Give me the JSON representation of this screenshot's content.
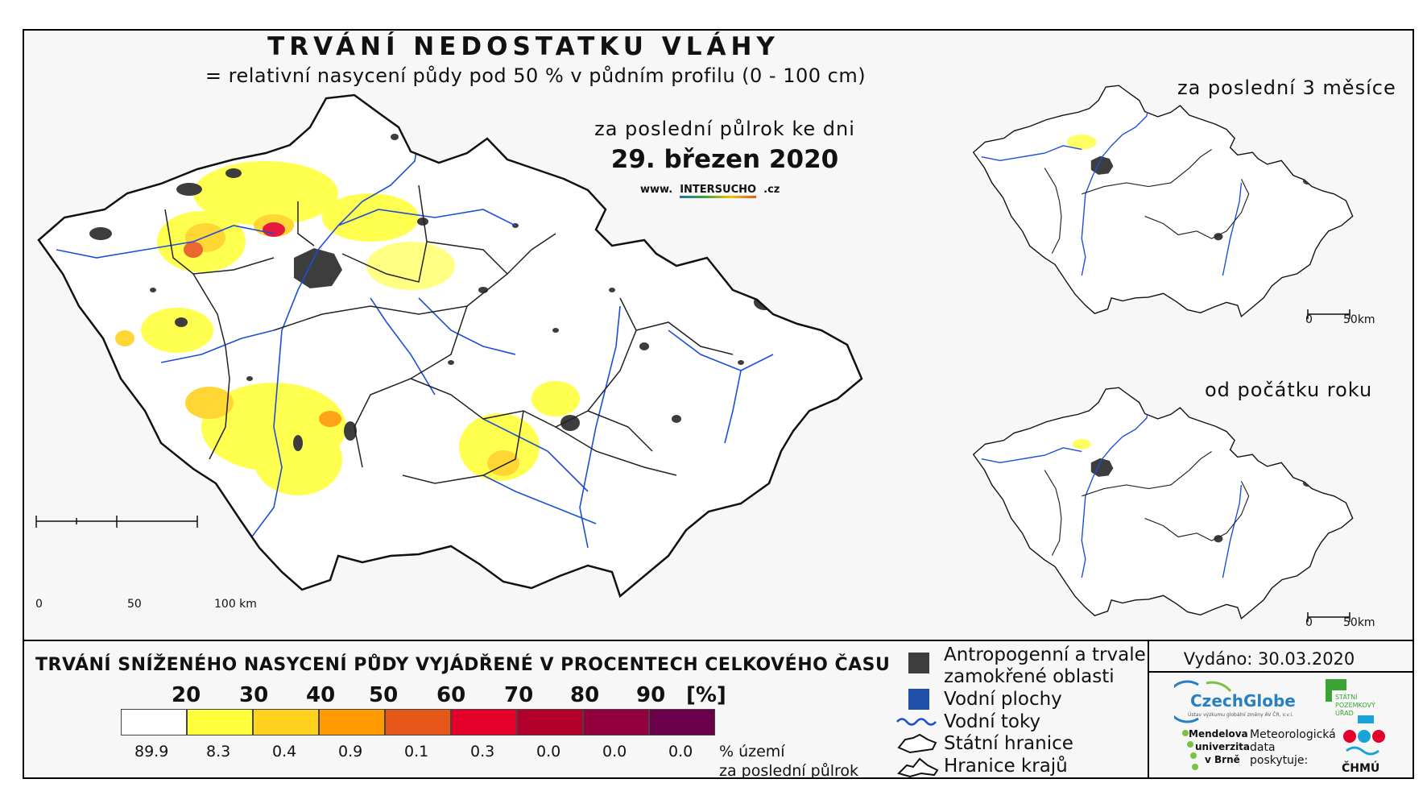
{
  "header": {
    "title": "TRVÁNÍ NEDOSTATKU VLÁHY",
    "subtitle": "= relativní nasycení půdy pod 50 % v půdním profilu (0 - 100 cm)",
    "period_label": "za poslední půlrok ke dni",
    "date": "29. březen 2020",
    "www_prefix": "www.",
    "www_brand": "INTERSUCHO",
    "www_suffix": ".cz"
  },
  "main_map": {
    "scale": {
      "labels": [
        "0",
        "50",
        "100 km"
      ]
    }
  },
  "insets": [
    {
      "title": "za poslední 3 měsíce",
      "scale": {
        "labels": [
          "0",
          "50km"
        ]
      }
    },
    {
      "title": "od počátku roku",
      "scale": {
        "labels": [
          "0",
          "50km"
        ]
      }
    }
  ],
  "legend": {
    "title": "TRVÁNÍ SNÍŽENÉHO NASYCENÍ PŮDY VYJÁDŘENÉ V PROCENTECH CELKOVÉHO ČASU",
    "thresholds": [
      "20",
      "30",
      "40",
      "50",
      "60",
      "70",
      "80",
      "90",
      "[%]"
    ],
    "classes": [
      {
        "color": "#ffffff",
        "share": "89.9"
      },
      {
        "color": "#ffff3c",
        "share": "8.3"
      },
      {
        "color": "#ffd21e",
        "share": "0.4"
      },
      {
        "color": "#ff9a00",
        "share": "0.9"
      },
      {
        "color": "#e8571a",
        "share": "0.1"
      },
      {
        "color": "#e4002b",
        "share": "0.3"
      },
      {
        "color": "#b3002a",
        "share": "0.0"
      },
      {
        "color": "#94003c",
        "share": "0.0"
      },
      {
        "color": "#6b004a",
        "share": "0.0"
      }
    ],
    "share_caption_1": "% území",
    "share_caption_2": "za poslední půlrok"
  },
  "symbols": {
    "anthropogenic_1": "Antropogenní a trvale",
    "anthropogenic_2": "zamokřené oblasti",
    "water_bodies": "Vodní plochy",
    "rivers": "Vodní toky",
    "state_border": "Státní hranice",
    "region_border": "Hranice krajů",
    "colors": {
      "anthropogenic": "#3d3d3d",
      "water_body": "#1f4fa8",
      "river": "#1a4fd6"
    }
  },
  "issued": "Vydáno: 30.03.2020",
  "logos": {
    "czechglobe": "CzechGlobe",
    "czechglobe_sub": "Ústav výzkumu globální změny AV ČR, v.v.i.",
    "spu_1": "STÁTNÍ",
    "spu_2": "POZEMKOVÝ",
    "spu_3": "ÚŘAD",
    "mendelu_1": "Mendelova",
    "mendelu_2": "univerzita",
    "mendelu_3": "v Brně",
    "met_1": "Meteorologická",
    "met_2": "data",
    "met_3": "poskytuje:",
    "chmu": "ČHMÚ"
  }
}
